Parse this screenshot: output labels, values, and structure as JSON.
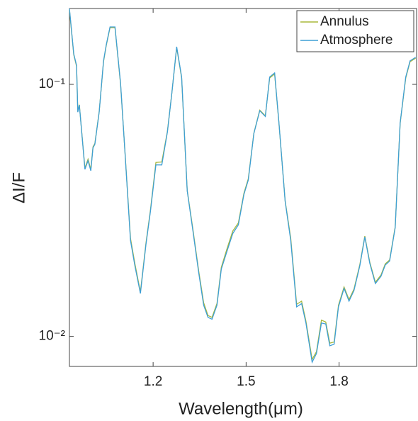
{
  "chart_data": {
    "type": "line",
    "scale": "log",
    "legend": "upper right",
    "xlabel": "Wavelength(μm)",
    "ylabel": "ΔI/F",
    "xlim": [
      0.93,
      2.05
    ],
    "ylim": [
      0.0076,
      0.2
    ],
    "xticks": [
      1.2,
      1.5,
      1.8
    ],
    "yticks": [
      {
        "value": 0.01,
        "label": "10⁻²"
      },
      {
        "value": 0.1,
        "label": "10⁻¹"
      }
    ],
    "x": [
      0.93,
      0.944,
      0.953,
      0.957,
      0.962,
      0.971,
      0.98,
      0.99,
      0.999,
      1.006,
      1.012,
      1.026,
      1.04,
      1.049,
      1.061,
      1.077,
      1.095,
      1.109,
      1.127,
      1.141,
      1.159,
      1.177,
      1.191,
      1.209,
      1.228,
      1.246,
      1.26,
      1.276,
      1.292,
      1.31,
      1.328,
      1.347,
      1.363,
      1.377,
      1.39,
      1.406,
      1.42,
      1.438,
      1.457,
      1.475,
      1.493,
      1.507,
      1.525,
      1.544,
      1.562,
      1.576,
      1.592,
      1.606,
      1.626,
      1.644,
      1.663,
      1.679,
      1.693,
      1.713,
      1.727,
      1.743,
      1.757,
      1.77,
      1.784,
      1.798,
      1.816,
      1.832,
      1.848,
      1.867,
      1.883,
      1.899,
      1.917,
      1.935,
      1.949,
      1.963,
      1.981,
      1.997,
      2.015,
      2.029,
      2.047
    ],
    "series": [
      {
        "name": "Annulus",
        "color": "#a8b83a",
        "values": [
          0.198,
          0.131,
          0.118,
          0.078,
          0.083,
          0.062,
          0.0465,
          0.0505,
          0.046,
          0.0565,
          0.0582,
          0.078,
          0.123,
          0.143,
          0.168,
          0.168,
          0.1,
          0.0545,
          0.0245,
          0.0195,
          0.015,
          0.0235,
          0.0315,
          0.049,
          0.0492,
          0.065,
          0.0915,
          0.14,
          0.106,
          0.038,
          0.0268,
          0.0182,
          0.0136,
          0.0121,
          0.0119,
          0.0135,
          0.0188,
          0.0222,
          0.0262,
          0.0282,
          0.037,
          0.0422,
          0.064,
          0.079,
          0.075,
          0.106,
          0.11,
          0.07,
          0.0345,
          0.0245,
          0.0134,
          0.0138,
          0.0115,
          0.0081,
          0.0087,
          0.0116,
          0.0114,
          0.0094,
          0.0095,
          0.0133,
          0.0157,
          0.014,
          0.0154,
          0.0193,
          0.025,
          0.0197,
          0.0164,
          0.0175,
          0.0194,
          0.0201,
          0.0272,
          0.07,
          0.106,
          0.123,
          0.127
        ]
      },
      {
        "name": "Atmosphere",
        "color": "#3e9fd6",
        "values": [
          0.2,
          0.132,
          0.119,
          0.0776,
          0.0828,
          0.0617,
          0.046,
          0.0498,
          0.0454,
          0.056,
          0.0578,
          0.0776,
          0.124,
          0.144,
          0.169,
          0.169,
          0.101,
          0.0542,
          0.024,
          0.0191,
          0.0148,
          0.0232,
          0.0311,
          0.0479,
          0.0479,
          0.0646,
          0.0913,
          0.141,
          0.107,
          0.0378,
          0.0264,
          0.0179,
          0.0133,
          0.0119,
          0.0117,
          0.0133,
          0.0185,
          0.0217,
          0.0256,
          0.0277,
          0.0366,
          0.0417,
          0.0638,
          0.0786,
          0.0746,
          0.107,
          0.111,
          0.0703,
          0.0343,
          0.024,
          0.0131,
          0.0135,
          0.0113,
          0.0079,
          0.00855,
          0.0113,
          0.0112,
          0.00918,
          0.00931,
          0.0131,
          0.0155,
          0.0138,
          0.0152,
          0.0191,
          0.0248,
          0.0195,
          0.0162,
          0.0173,
          0.0192,
          0.0199,
          0.027,
          0.0703,
          0.107,
          0.124,
          0.128
        ]
      }
    ]
  }
}
